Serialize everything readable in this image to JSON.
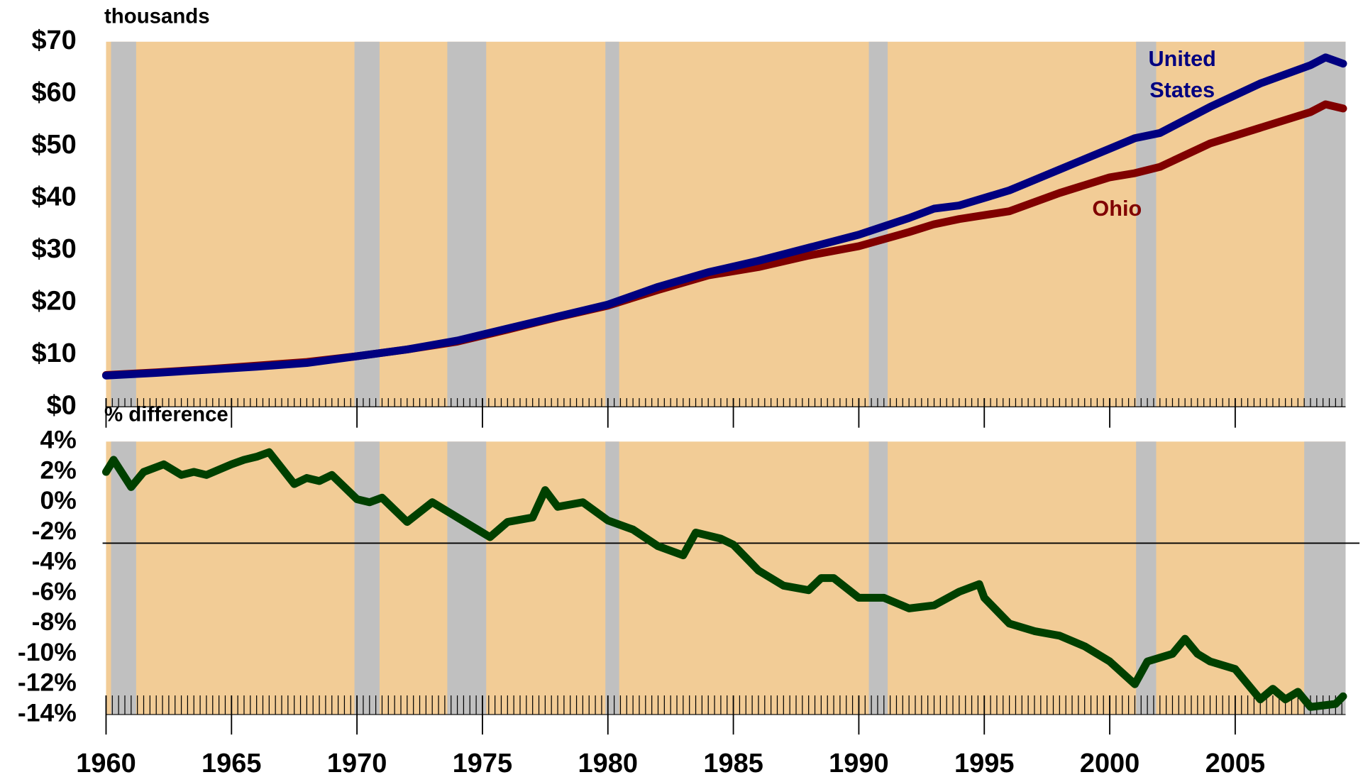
{
  "chart_data": [
    {
      "type": "line",
      "y_label": "thousands",
      "xlim": [
        1960,
        2009.4
      ],
      "xticks": [
        1960,
        1965,
        1970,
        1975,
        1980,
        1985,
        1990,
        1995,
        2000,
        2005
      ],
      "ylim": [
        0,
        70
      ],
      "yticks": [
        {
          "value": 0,
          "label": "$0"
        },
        {
          "value": 10,
          "label": "$10"
        },
        {
          "value": 20,
          "label": "$20"
        },
        {
          "value": 30,
          "label": "$30"
        },
        {
          "value": 40,
          "label": "$40"
        },
        {
          "value": 50,
          "label": "$50"
        },
        {
          "value": 60,
          "label": "$60"
        },
        {
          "value": 70,
          "label": "$70"
        }
      ],
      "background": "#f2cc96",
      "shade_color": "#c0c0c0",
      "shaded_periods": [
        [
          1960.2,
          1961.2
        ],
        [
          1969.9,
          1970.9
        ],
        [
          1973.6,
          1975.15
        ],
        [
          1979.9,
          1980.45
        ],
        [
          1990.4,
          1991.15
        ],
        [
          2001.05,
          2001.85
        ],
        [
          2007.75,
          2009.4
        ]
      ],
      "series": [
        {
          "name": "United States",
          "color": "#000080",
          "x": [
            1960,
            1962,
            1964,
            1966,
            1968,
            1970,
            1972,
            1974,
            1976,
            1978,
            1980,
            1982,
            1984,
            1986,
            1988,
            1990,
            1992,
            1993,
            1994,
            1996,
            1998,
            2000,
            2001,
            2002,
            2004,
            2006,
            2008,
            2008.6,
            2009.3
          ],
          "values": [
            6.0,
            6.5,
            7.1,
            7.7,
            8.4,
            9.7,
            11.0,
            12.7,
            15.0,
            17.3,
            19.6,
            23.0,
            25.8,
            28.0,
            30.5,
            33.0,
            36.2,
            38.0,
            38.6,
            41.5,
            45.5,
            49.5,
            51.5,
            52.5,
            57.5,
            62.0,
            65.5,
            67.0,
            65.8
          ]
        },
        {
          "name": "Ohio",
          "color": "#800000",
          "x": [
            1960,
            1962,
            1964,
            1966,
            1968,
            1970,
            1972,
            1974,
            1976,
            1978,
            1980,
            1982,
            1984,
            1986,
            1988,
            1990,
            1992,
            1993,
            1994,
            1996,
            1998,
            2000,
            2001,
            2002,
            2004,
            2006,
            2008,
            2008.6,
            2009.3
          ],
          "values": [
            6.1,
            6.6,
            7.2,
            7.9,
            8.6,
            9.7,
            11.0,
            12.5,
            14.8,
            17.2,
            19.4,
            22.4,
            25.2,
            26.8,
            29.0,
            30.8,
            33.5,
            35.0,
            36.0,
            37.5,
            41.0,
            44.0,
            44.8,
            46.0,
            50.5,
            53.5,
            56.5,
            58.0,
            57.2
          ]
        }
      ]
    },
    {
      "type": "line",
      "y_label": "% difference",
      "xlim": [
        1960,
        2009.4
      ],
      "ylim": [
        -14,
        4
      ],
      "yticks": [
        {
          "value": 4,
          "label": "4%"
        },
        {
          "value": 2,
          "label": "2%"
        },
        {
          "value": 0,
          "label": "0%"
        },
        {
          "value": -2,
          "label": "-2%"
        },
        {
          "value": -4,
          "label": "-4%"
        },
        {
          "value": -6,
          "label": "-6%"
        },
        {
          "value": -8,
          "label": "-8%"
        },
        {
          "value": -10,
          "label": "-10%"
        },
        {
          "value": -12,
          "label": "-12%"
        },
        {
          "value": -14,
          "label": "-14%"
        }
      ],
      "xticks": [
        1960,
        1965,
        1970,
        1975,
        1980,
        1985,
        1990,
        1995,
        2000,
        2005
      ],
      "reference_line": -2.7,
      "series": [
        {
          "color": "#004000",
          "x": [
            1960,
            1960.3,
            1961,
            1961.5,
            1962.3,
            1963,
            1963.5,
            1964,
            1965,
            1965.5,
            1966,
            1966.5,
            1967.5,
            1968,
            1968.5,
            1969,
            1970,
            1970.5,
            1971,
            1972,
            1973,
            1974,
            1975,
            1975.3,
            1976,
            1977,
            1977.5,
            1978,
            1979,
            1980,
            1981,
            1982,
            1983,
            1983.5,
            1984.5,
            1985,
            1986,
            1987,
            1988,
            1988.5,
            1989,
            1990,
            1991,
            1992,
            1993,
            1994,
            1994.8,
            1995,
            1996,
            1997,
            1998,
            1999,
            2000,
            2001,
            2001.5,
            2002.5,
            2003,
            2003.5,
            2004,
            2005,
            2006,
            2006.5,
            2007,
            2007.5,
            2008,
            2009,
            2009.3
          ],
          "values": [
            2.0,
            2.8,
            1.0,
            2.0,
            2.5,
            1.8,
            2.0,
            1.8,
            2.5,
            2.8,
            3.0,
            3.3,
            1.2,
            1.6,
            1.4,
            1.8,
            0.2,
            0.0,
            0.3,
            -1.3,
            0.0,
            -1.0,
            -2.0,
            -2.3,
            -1.3,
            -1.0,
            0.8,
            -0.3,
            0.0,
            -1.2,
            -1.8,
            -2.9,
            -3.5,
            -2.0,
            -2.4,
            -2.8,
            -4.5,
            -5.5,
            -5.8,
            -5.0,
            -5.0,
            -6.3,
            -6.3,
            -7.0,
            -6.8,
            -5.9,
            -5.4,
            -6.3,
            -8.0,
            -8.5,
            -8.8,
            -9.5,
            -10.5,
            -12.0,
            -10.5,
            -10.0,
            -9.0,
            -10.0,
            -10.5,
            -11.0,
            -13.0,
            -12.3,
            -13.0,
            -12.5,
            -13.5,
            -13.3,
            -12.8
          ]
        }
      ]
    }
  ]
}
